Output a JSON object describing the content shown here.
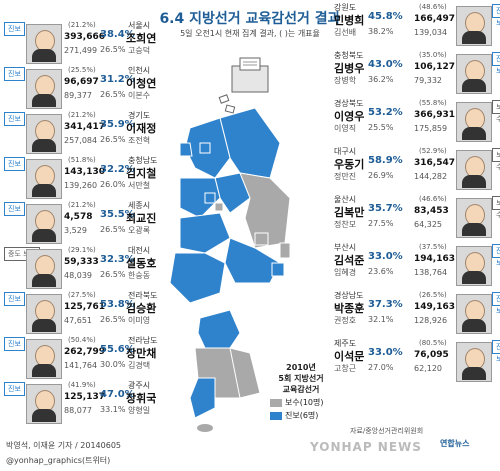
{
  "title": "6.4 지방선거 교육감선거 결과",
  "subtitle": "5일 오전1시 현재 집계 결과, ( )는 개표율",
  "left_rows": [
    {
      "badge": "진보",
      "badge_type": "prog",
      "region": "서울시",
      "winner": "조희연",
      "runner": "고승덕",
      "rate": "38.4%",
      "rate2": "26.5%",
      "pct_top": "(21.2%)",
      "votes": "393,666",
      "votes2": "271,499"
    },
    {
      "badge": "진보",
      "badge_type": "prog",
      "region": "인천시",
      "winner": "이청연",
      "runner": "이본수",
      "rate": "31.2%",
      "rate2": "26.5%",
      "pct_top": "(25.5%)",
      "votes": "96,697",
      "votes2": "89,377"
    },
    {
      "badge": "진보",
      "badge_type": "prog",
      "region": "경기도",
      "winner": "이재정",
      "runner": "조전혁",
      "rate": "35.9%",
      "rate2": "26.5%",
      "pct_top": "(21.2%)",
      "votes": "341,417",
      "votes2": "257,084"
    },
    {
      "badge": "진보",
      "badge_type": "prog",
      "region": "충청남도",
      "winner": "김지철",
      "runner": "서만철",
      "rate": "32.2%",
      "rate2": "26.0%",
      "pct_top": "(51.8%)",
      "votes": "143,130",
      "votes2": "139,260"
    },
    {
      "badge": "진보",
      "badge_type": "prog",
      "region": "세종시",
      "winner": "최교진",
      "runner": "오광록",
      "rate": "35.5%",
      "rate2": "26.5%",
      "pct_top": "(21.2%)",
      "votes": "4,578",
      "votes2": "3,529"
    },
    {
      "badge": "중도 보수",
      "badge_type": "cons",
      "region": "대전시",
      "winner": "설동호",
      "runner": "한숭동",
      "rate": "32.3%",
      "rate2": "26.5%",
      "pct_top": "(29.1%)",
      "votes": "59,333",
      "votes2": "48,039"
    },
    {
      "badge": "진보",
      "badge_type": "prog",
      "region": "전라북도",
      "winner": "김승환",
      "runner": "이미영",
      "rate": "53.8%",
      "rate2": "26.5%",
      "pct_top": "(27.5%)",
      "votes": "125,761",
      "votes2": "47,651"
    },
    {
      "badge": "진보",
      "badge_type": "prog",
      "region": "전라남도",
      "winner": "장만채",
      "runner": "김경택",
      "rate": "55.6%",
      "rate2": "30.0%",
      "pct_top": "(50.4%)",
      "votes": "262,799",
      "votes2": "141,764"
    },
    {
      "badge": "진보",
      "badge_type": "prog",
      "region": "광주시",
      "winner": "장휘국",
      "runner": "양형일",
      "rate": "47.0%",
      "rate2": "33.1%",
      "pct_top": "(41.9%)",
      "votes": "125,137",
      "votes2": "88,077"
    }
  ],
  "right_rows": [
    {
      "badge": "진보",
      "badge_type": "prog",
      "region": "강원도",
      "winner": "민병희",
      "runner": "김선배",
      "rate": "45.8%",
      "rate2": "38.2%",
      "pct_top": "(48.6%)",
      "votes": "166,497",
      "votes2": "139,034"
    },
    {
      "badge": "진보",
      "badge_type": "prog",
      "region": "충청북도",
      "winner": "김병우",
      "runner": "장병학",
      "rate": "43.0%",
      "rate2": "36.2%",
      "pct_top": "(35.0%)",
      "votes": "106,127",
      "votes2": "79,332"
    },
    {
      "badge": "보수",
      "badge_type": "cons",
      "region": "경상북도",
      "winner": "이영우",
      "runner": "이영직",
      "rate": "53.2%",
      "rate2": "25.5%",
      "pct_top": "(55.8%)",
      "votes": "366,931",
      "votes2": "175,859"
    },
    {
      "badge": "보수",
      "badge_type": "cons",
      "region": "대구시",
      "winner": "우동기",
      "runner": "정만진",
      "rate": "58.9%",
      "rate2": "26.9%",
      "pct_top": "(52.9%)",
      "votes": "316,547",
      "votes2": "144,282"
    },
    {
      "badge": "보수",
      "badge_type": "cons",
      "region": "울산시",
      "winner": "김복만",
      "runner": "정찬모",
      "rate": "35.7%",
      "rate2": "27.5%",
      "pct_top": "(46.6%)",
      "votes": "83,453",
      "votes2": "64,325"
    },
    {
      "badge": "진보",
      "badge_type": "prog",
      "region": "부산시",
      "winner": "김석준",
      "runner": "임혜경",
      "rate": "33.0%",
      "rate2": "23.6%",
      "pct_top": "(37.5%)",
      "votes": "194,163",
      "votes2": "138,764"
    },
    {
      "badge": "진보",
      "badge_type": "prog",
      "region": "경상남도",
      "winner": "박종훈",
      "runner": "권정호",
      "rate": "37.3%",
      "rate2": "32.1%",
      "pct_top": "(26.5%)",
      "votes": "149,163",
      "votes2": "128,926"
    },
    {
      "badge": "진보",
      "badge_type": "prog",
      "region": "제주도",
      "winner": "이석문",
      "runner": "고창근",
      "rate": "33.0%",
      "rate2": "27.0%",
      "pct_top": "(80.5%)",
      "votes": "76,095",
      "votes2": "62,120"
    }
  ],
  "legend": {
    "title1": "2010년",
    "title2": "5회 지방선거",
    "title3": "교육감선거",
    "cons_label": "보수(10명)",
    "prog_label": "진보(6명)",
    "cons_color": "#a9a9a9",
    "prog_color": "#2f83cc"
  },
  "footer": {
    "credit": "박영석, 이재윤 기자 / 20140605",
    "twitter": "@yonhap_graphics(트위터)",
    "source": "자료/중앙선거관리위원회",
    "logo": "연합뉴스",
    "watermark": "YONHAP NEWS"
  },
  "icons": {
    "ballot_box": "ballot-box-icon"
  },
  "colors": {
    "progressive": "#2f83cc",
    "conservative": "#a9a9a9",
    "title": "#1e5d96"
  }
}
